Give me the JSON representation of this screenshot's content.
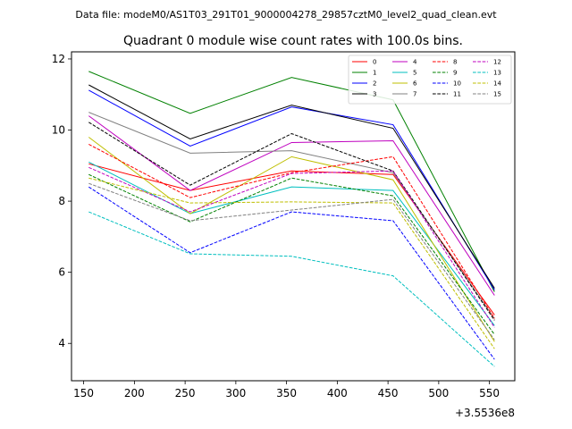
{
  "chart_data": {
    "type": "line",
    "suptitle": "Data file: modeM0/AS1T03_291T01_9000004278_29857cztM0_level2_quad_clean.evt",
    "title": "Quadrant 0 module wise count rates with 100.0s bins.",
    "xlabel": "",
    "ylabel": "",
    "x_offset_label": "+3.5536e8",
    "x": [
      155,
      255,
      355,
      455,
      555
    ],
    "xlim": [
      138,
      575
    ],
    "ylim": [
      2.95,
      12.2
    ],
    "x_ticks": [
      150,
      200,
      250,
      300,
      350,
      400,
      450,
      500,
      550
    ],
    "y_ticks": [
      4,
      6,
      8,
      10,
      12
    ],
    "grid": false,
    "legend_position": "top-right",
    "series": [
      {
        "name": "0",
        "color": "#ff0000",
        "dash": "solid",
        "values": [
          9.05,
          8.3,
          8.85,
          8.75,
          4.8
        ]
      },
      {
        "name": "1",
        "color": "#008000",
        "dash": "solid",
        "values": [
          11.65,
          10.47,
          11.48,
          10.85,
          5.45
        ]
      },
      {
        "name": "2",
        "color": "#0000ff",
        "dash": "solid",
        "values": [
          11.12,
          9.55,
          10.65,
          10.15,
          5.5
        ]
      },
      {
        "name": "3",
        "color": "#000000",
        "dash": "solid",
        "values": [
          11.27,
          9.75,
          10.7,
          10.05,
          5.55
        ]
      },
      {
        "name": "4",
        "color": "#bf00bf",
        "dash": "solid",
        "values": [
          10.4,
          8.3,
          9.65,
          9.7,
          5.35
        ]
      },
      {
        "name": "5",
        "color": "#00bfbf",
        "dash": "solid",
        "values": [
          9.1,
          7.65,
          8.4,
          8.3,
          4.5
        ]
      },
      {
        "name": "6",
        "color": "#bfbf00",
        "dash": "solid",
        "values": [
          9.8,
          7.65,
          9.25,
          8.6,
          4.05
        ]
      },
      {
        "name": "7",
        "color": "#808080",
        "dash": "solid",
        "values": [
          10.5,
          9.35,
          9.42,
          8.8,
          4.7
        ]
      },
      {
        "name": "8",
        "color": "#ff0000",
        "dash": "dashed",
        "values": [
          9.6,
          8.1,
          8.8,
          9.25,
          4.7
        ]
      },
      {
        "name": "9",
        "color": "#008000",
        "dash": "dashed",
        "values": [
          8.75,
          7.42,
          8.65,
          8.15,
          4.25
        ]
      },
      {
        "name": "10",
        "color": "#0000ff",
        "dash": "dashed",
        "values": [
          8.4,
          6.55,
          7.7,
          7.45,
          3.55
        ]
      },
      {
        "name": "11",
        "color": "#000000",
        "dash": "dashed",
        "values": [
          10.22,
          8.45,
          9.9,
          8.85,
          4.65
        ]
      },
      {
        "name": "12",
        "color": "#bf00bf",
        "dash": "dashed",
        "values": [
          8.95,
          7.7,
          8.78,
          8.85,
          4.45
        ]
      },
      {
        "name": "13",
        "color": "#00bfbf",
        "dash": "dashed",
        "values": [
          7.7,
          6.52,
          6.45,
          5.9,
          3.35
        ]
      },
      {
        "name": "14",
        "color": "#bfbf00",
        "dash": "dashed",
        "values": [
          8.65,
          7.95,
          7.98,
          7.95,
          3.85
        ]
      },
      {
        "name": "15",
        "color": "#808080",
        "dash": "dashed",
        "values": [
          8.5,
          7.45,
          7.75,
          8.05,
          4.1
        ]
      }
    ]
  }
}
